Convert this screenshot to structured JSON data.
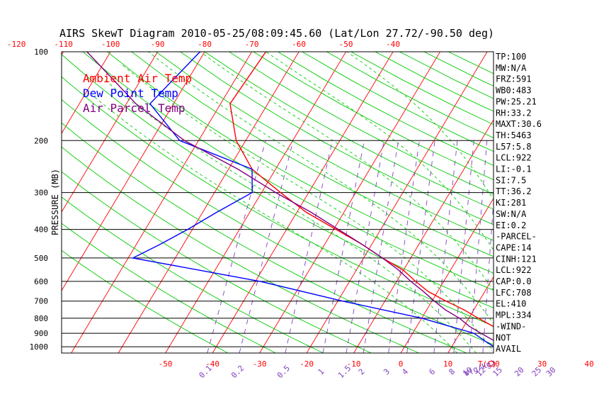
{
  "chart_data": {
    "type": "skewt",
    "title": "AIRS SkewT Diagram 2010-05-25/08:09:45.60 (Lat/Lon 27.72/-90.50 deg)",
    "ylabel": "PRESSURE (MB)",
    "xlabel_top": "",
    "xlabel_bottom": "T(C)",
    "mixing_ratio_label": "W(g/kg)",
    "pressure_ticks": [
      100,
      200,
      300,
      400,
      500,
      600,
      700,
      800,
      900,
      1000
    ],
    "isobars": [
      200,
      300,
      400,
      500,
      600,
      700,
      800,
      900,
      1000
    ],
    "top_temp_ticks": [
      -120,
      -110,
      -100,
      -90,
      -80,
      -70,
      -60,
      -50,
      -40
    ],
    "bottom_temp_ticks": [
      -50,
      -40,
      -30,
      -20,
      -10,
      0,
      10,
      20,
      30,
      40
    ],
    "mixing_ratio_ticks": [
      "0.1",
      "0.2",
      "0.5",
      "1",
      "1.5",
      "2",
      "3",
      "4",
      "6",
      "8",
      "10",
      "12",
      "15",
      "20",
      "25",
      "30"
    ],
    "legend": [
      "Ambient Air Temp",
      "Dew Point Temp",
      "Air Parcel Temp"
    ],
    "colors": {
      "ambient": "#ff0000",
      "dewpoint": "#0000ff",
      "parcel": "#800080",
      "isotherm": "#ff0000",
      "dry_adiabat": "#00cc00",
      "mixing_ratio": "#8040c0",
      "isobar": "#000000"
    },
    "series": [
      {
        "name": "Ambient Air Temp",
        "points": [
          [
            100,
            -67
          ],
          [
            150,
            -68
          ],
          [
            200,
            -62
          ],
          [
            250,
            -55
          ],
          [
            300,
            -46
          ],
          [
            350,
            -38
          ],
          [
            400,
            -29.5
          ],
          [
            450,
            -22
          ],
          [
            500,
            -16
          ],
          [
            550,
            -10
          ],
          [
            600,
            -6
          ],
          [
            650,
            -2
          ],
          [
            700,
            3
          ],
          [
            750,
            8
          ],
          [
            800,
            12
          ],
          [
            850,
            16
          ],
          [
            900,
            20
          ],
          [
            950,
            23
          ],
          [
            1000,
            26
          ]
        ]
      },
      {
        "name": "Dew Point Temp",
        "points": [
          [
            100,
            -81
          ],
          [
            150,
            -85
          ],
          [
            200,
            -74
          ],
          [
            250,
            -55
          ],
          [
            300,
            -52
          ],
          [
            350,
            -57
          ],
          [
            400,
            -61
          ],
          [
            450,
            -65
          ],
          [
            500,
            -69
          ],
          [
            600,
            -39
          ],
          [
            700,
            -19
          ],
          [
            800,
            0
          ],
          [
            900,
            13
          ],
          [
            950,
            16
          ],
          [
            1000,
            19
          ]
        ]
      },
      {
        "name": "Air Parcel Temp",
        "points": [
          [
            100,
            -105
          ],
          [
            150,
            -88
          ],
          [
            200,
            -73
          ],
          [
            250,
            -58
          ],
          [
            300,
            -47
          ],
          [
            350,
            -37
          ],
          [
            400,
            -29
          ],
          [
            450,
            -22
          ],
          [
            500,
            -16
          ],
          [
            550,
            -11
          ],
          [
            600,
            -7
          ],
          [
            650,
            -3
          ],
          [
            700,
            0.5
          ],
          [
            750,
            4
          ],
          [
            800,
            8
          ],
          [
            850,
            11
          ],
          [
            900,
            14.5
          ],
          [
            950,
            18
          ],
          [
            1000,
            24
          ]
        ]
      }
    ],
    "indices": [
      "TP:100",
      "MW:N/A",
      "FRZ:591",
      "WB0:483",
      "PW:25.21",
      "RH:33.2",
      "MAXT:30.6",
      "TH:5463",
      "L57:5.8",
      "LCL:922",
      "LI:-0.1",
      "SI:7.5",
      "TT:36.2",
      "KI:281",
      "SW:N/A",
      "EI:0.2",
      "-PARCEL-",
      "CAPE:14",
      "CINH:121",
      "LCL:922",
      "CAP:0.0",
      "LFC:708",
      "EL:410",
      "MPL:334",
      "-WIND-",
      "NOT",
      "AVAIL"
    ]
  }
}
